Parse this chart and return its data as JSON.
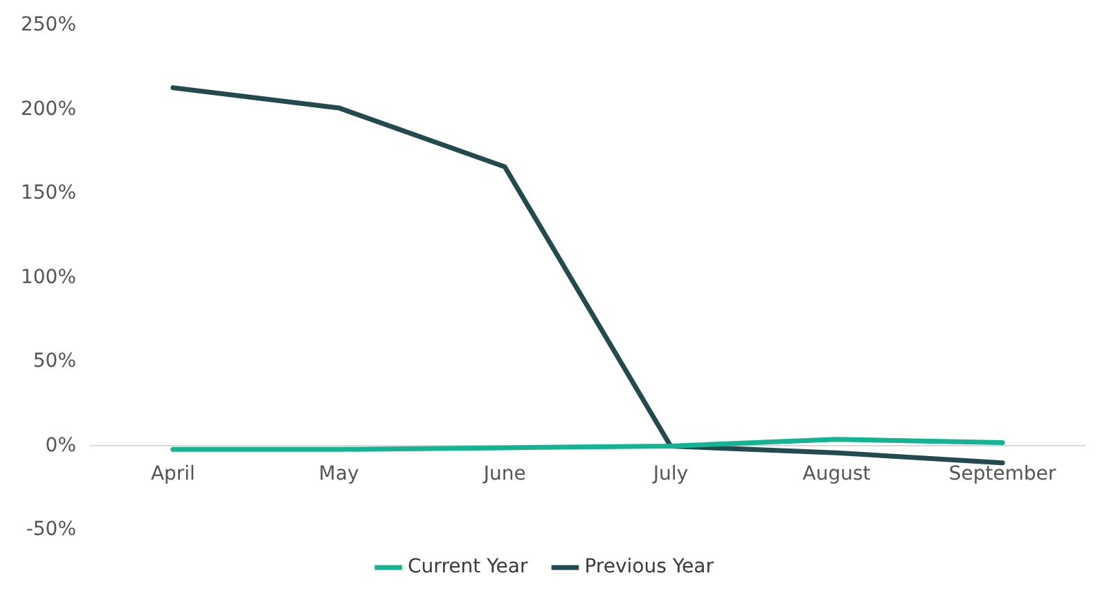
{
  "chart_data": {
    "type": "line",
    "categories": [
      "April",
      "May",
      "June",
      "July",
      "August",
      "September"
    ],
    "series": [
      {
        "name": "Current Year",
        "color": "#14b392",
        "values": [
          -2,
          -2,
          -1,
          0,
          4,
          2
        ]
      },
      {
        "name": "Previous Year",
        "color": "#234a4f",
        "values": [
          213,
          201,
          166,
          0,
          -4,
          -10
        ]
      }
    ],
    "ylim": [
      -50,
      250
    ],
    "yticks": [
      {
        "value": -50,
        "label": "-50%"
      },
      {
        "value": 0,
        "label": "0%"
      },
      {
        "value": 50,
        "label": "50%"
      },
      {
        "value": 100,
        "label": "100%"
      },
      {
        "value": 150,
        "label": "150%"
      },
      {
        "value": 200,
        "label": "200%"
      },
      {
        "value": 250,
        "label": "250%"
      }
    ],
    "grid": false,
    "legend": "bottom",
    "marker": "none",
    "line_style": "solid"
  }
}
